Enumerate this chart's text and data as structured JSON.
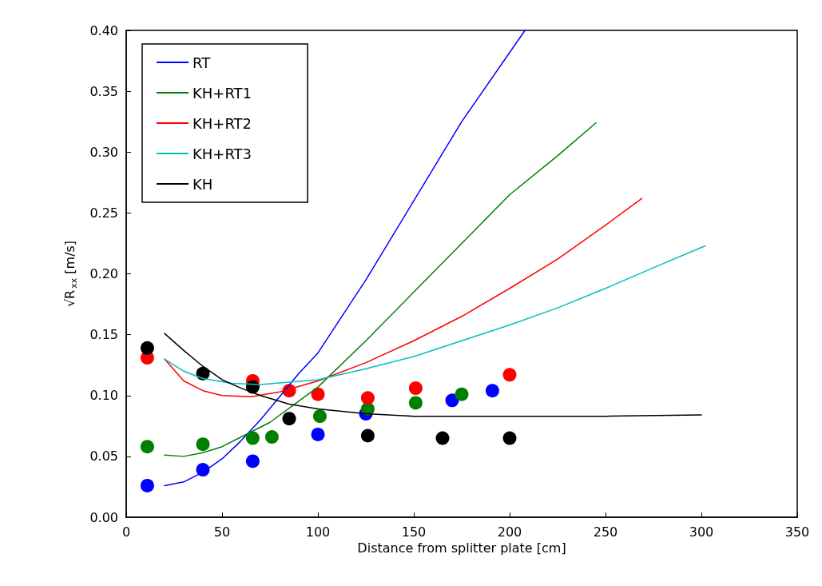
{
  "chart_data": {
    "type": "line",
    "xlabel": "Distance from splitter plate [cm]",
    "ylabel": "√R$_{xx}$ [m/s]",
    "xlim": [
      0,
      350
    ],
    "xticks": [
      0,
      50,
      100,
      150,
      200,
      250,
      300,
      350
    ],
    "ylim": [
      0,
      0.4
    ],
    "yticks": [
      {
        "value": 0,
        "label": "0.00"
      },
      0.05,
      {
        "value": 0.1,
        "label": "0.10"
      },
      0.15,
      {
        "value": 0.2,
        "label": "0.20"
      },
      0.25,
      {
        "value": 0.3,
        "label": "0.30"
      },
      0.35,
      {
        "value": 0.4,
        "label": "0.40"
      }
    ],
    "grid": false,
    "legend": "top left",
    "line_style": "solid",
    "series": [
      {
        "name": "RT",
        "color": "#0000ff",
        "x": [
          20,
          30,
          40,
          50,
          60,
          70,
          80,
          90,
          100,
          125,
          150,
          175,
          208
        ],
        "values": [
          0.026,
          0.029,
          0.037,
          0.048,
          0.063,
          0.08,
          0.099,
          0.118,
          0.135,
          0.195,
          0.26,
          0.325,
          0.4
        ]
      },
      {
        "name": "KH+RT1",
        "color": "#008000",
        "x": [
          20,
          30,
          40,
          50,
          60,
          75,
          100,
          125,
          150,
          175,
          200,
          225,
          245
        ],
        "values": [
          0.051,
          0.05,
          0.053,
          0.058,
          0.066,
          0.078,
          0.107,
          0.145,
          0.185,
          0.225,
          0.265,
          0.297,
          0.324
        ]
      },
      {
        "name": "KH+RT2",
        "color": "#ff0000",
        "x": [
          20,
          30,
          40,
          50,
          65,
          80,
          100,
          125,
          150,
          175,
          200,
          225,
          250,
          269
        ],
        "values": [
          0.13,
          0.112,
          0.104,
          0.1,
          0.099,
          0.103,
          0.112,
          0.127,
          0.145,
          0.165,
          0.188,
          0.212,
          0.24,
          0.262
        ]
      },
      {
        "name": "KH+RT3",
        "color": "#00bfbf",
        "x": [
          20,
          30,
          40,
          55,
          70,
          85,
          100,
          125,
          150,
          175,
          200,
          225,
          250,
          275,
          302
        ],
        "values": [
          0.13,
          0.12,
          0.114,
          0.11,
          0.109,
          0.111,
          0.113,
          0.122,
          0.132,
          0.145,
          0.158,
          0.172,
          0.188,
          0.205,
          0.223
        ]
      },
      {
        "name": "KH",
        "color": "#000000",
        "x": [
          20,
          30,
          40,
          50,
          60,
          70,
          85,
          100,
          125,
          150,
          200,
          250,
          300
        ],
        "values": [
          0.151,
          0.137,
          0.124,
          0.113,
          0.106,
          0.1,
          0.093,
          0.089,
          0.085,
          0.083,
          0.083,
          0.083,
          0.084
        ]
      },
      {
        "type": "scatter",
        "marker": "circle",
        "color": "#0000ff",
        "x": [
          11,
          40,
          66,
          100,
          125,
          170,
          191
        ],
        "values": [
          0.026,
          0.039,
          0.046,
          0.068,
          0.085,
          0.096,
          0.104
        ]
      },
      {
        "type": "scatter",
        "marker": "circle",
        "color": "#008000",
        "x": [
          11,
          40,
          66,
          76,
          101,
          126,
          151,
          175
        ],
        "values": [
          0.058,
          0.06,
          0.065,
          0.066,
          0.083,
          0.089,
          0.094,
          0.101
        ]
      },
      {
        "type": "scatter",
        "marker": "circle",
        "color": "#ff0000",
        "x": [
          11,
          66,
          85,
          100,
          126,
          151,
          200
        ],
        "values": [
          0.131,
          0.112,
          0.104,
          0.101,
          0.098,
          0.106,
          0.117
        ]
      },
      {
        "type": "scatter",
        "marker": "circle",
        "color": "#000000",
        "x": [
          11,
          40,
          66,
          85,
          126,
          165,
          200
        ],
        "values": [
          0.139,
          0.118,
          0.107,
          0.081,
          0.067,
          0.065,
          0.065
        ]
      }
    ]
  }
}
